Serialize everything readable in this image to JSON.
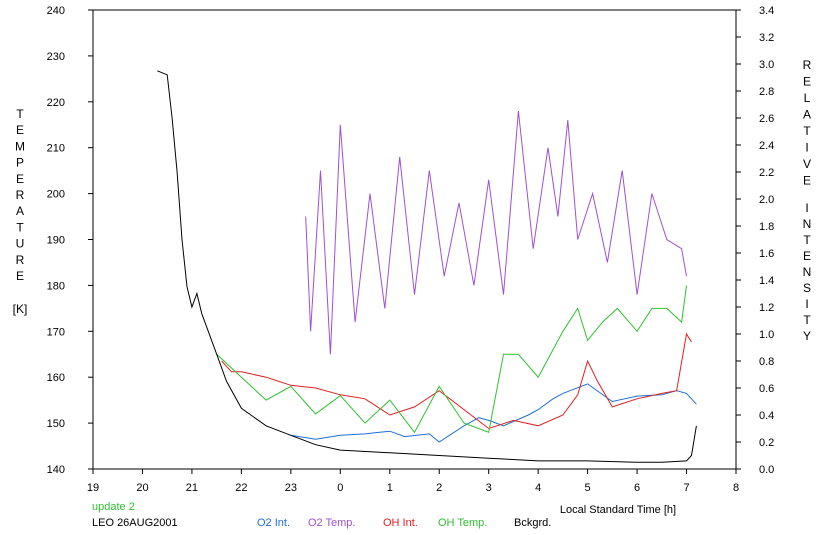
{
  "chart_data": {
    "type": "line",
    "title": "",
    "ylabel_left_letters": [
      "T",
      "E",
      "M",
      "P",
      "E",
      "R",
      "A",
      "T",
      "U",
      "R",
      "E"
    ],
    "ylabel_left_unit": "[K]",
    "ylabel_right_word1": [
      "R",
      "E",
      "L",
      "A",
      "T",
      "I",
      "V",
      "E"
    ],
    "ylabel_right_word2": [
      "I",
      "N",
      "T",
      "E",
      "N",
      "S",
      "I",
      "T",
      "Y"
    ],
    "xlabel": "Local Standard Time [h]",
    "x_range": [
      19,
      32
    ],
    "x_ticks": [
      19,
      20,
      21,
      22,
      23,
      24,
      25,
      26,
      27,
      28,
      29,
      30,
      31,
      32
    ],
    "x_tick_labels": [
      "19",
      "20",
      "21",
      "22",
      "23",
      "0",
      "1",
      "2",
      "3",
      "4",
      "5",
      "6",
      "7",
      "8"
    ],
    "y_left_range": [
      140,
      240
    ],
    "y_left_ticks": [
      140,
      150,
      160,
      170,
      180,
      190,
      200,
      210,
      220,
      230,
      240
    ],
    "y_left_tick_labels": [
      "140",
      "150",
      "160",
      "170",
      "180",
      "190",
      "200",
      "210",
      "220",
      "230",
      "240"
    ],
    "y_right_range": [
      0,
      3.4
    ],
    "y_right_ticks": [
      0,
      0.2,
      0.4,
      0.6,
      0.8,
      1.0,
      1.2,
      1.4,
      1.6,
      1.8,
      2.0,
      2.2,
      2.4,
      2.6,
      2.8,
      3.0,
      3.2,
      3.4
    ],
    "y_right_tick_labels": [
      "0.0",
      "0.2",
      "0.4",
      "0.6",
      "0.8",
      "1.0",
      "1.2",
      "1.4",
      "1.6",
      "1.8",
      "2.0",
      "2.2",
      "2.4",
      "2.6",
      "2.8",
      "3.0",
      "3.2",
      "3.4"
    ],
    "grid": false,
    "legend_placement": "bottom",
    "series": [
      {
        "name": "O2 Int.",
        "color": "#1f6fd6",
        "axis": "right",
        "x": [
          23.0,
          23.5,
          24.0,
          24.5,
          25.0,
          25.3,
          25.8,
          26.0,
          26.5,
          26.8,
          27.0,
          27.3,
          27.8,
          28.0,
          28.3,
          28.5,
          29.0,
          29.5,
          30.0,
          30.5,
          30.8,
          31.0,
          31.2
        ],
        "y": [
          0.25,
          0.22,
          0.25,
          0.26,
          0.28,
          0.24,
          0.26,
          0.2,
          0.32,
          0.38,
          0.36,
          0.32,
          0.4,
          0.44,
          0.52,
          0.56,
          0.63,
          0.5,
          0.54,
          0.55,
          0.58,
          0.56,
          0.48
        ]
      },
      {
        "name": "O2 Temp.",
        "color": "#a050d0",
        "axis": "left",
        "x": [
          23.3,
          23.4,
          23.6,
          23.8,
          24.0,
          24.3,
          24.6,
          24.9,
          25.2,
          25.5,
          25.8,
          26.1,
          26.4,
          26.7,
          27.0,
          27.3,
          27.6,
          27.9,
          28.2,
          28.4,
          28.6,
          28.8,
          29.1,
          29.4,
          29.7,
          30.0,
          30.3,
          30.6,
          30.9,
          31.0
        ],
        "y": [
          195,
          170,
          205,
          165,
          215,
          172,
          200,
          175,
          208,
          178,
          205,
          182,
          198,
          180,
          203,
          178,
          218,
          188,
          210,
          195,
          216,
          190,
          200,
          185,
          205,
          178,
          200,
          190,
          188,
          182
        ]
      },
      {
        "name": "OH Int.",
        "color": "#e02020",
        "axis": "right",
        "x": [
          21.6,
          21.8,
          22.0,
          22.5,
          23.0,
          23.5,
          24.0,
          24.5,
          25.0,
          25.5,
          26.0,
          26.5,
          27.0,
          27.5,
          28.0,
          28.5,
          28.8,
          29.0,
          29.2,
          29.5,
          30.0,
          30.5,
          30.8,
          31.0,
          31.1
        ],
        "y": [
          0.8,
          0.72,
          0.72,
          0.68,
          0.62,
          0.6,
          0.55,
          0.52,
          0.4,
          0.46,
          0.58,
          0.44,
          0.3,
          0.36,
          0.32,
          0.4,
          0.55,
          0.8,
          0.65,
          0.46,
          0.52,
          0.56,
          0.58,
          1.0,
          0.94
        ]
      },
      {
        "name": "OH Temp.",
        "color": "#30c030",
        "axis": "left",
        "x": [
          21.5,
          22.0,
          22.5,
          23.0,
          23.5,
          24.0,
          24.5,
          25.0,
          25.5,
          26.0,
          26.5,
          27.0,
          27.3,
          27.6,
          28.0,
          28.5,
          28.8,
          29.0,
          29.3,
          29.6,
          30.0,
          30.3,
          30.6,
          30.9,
          31.0
        ],
        "y": [
          165,
          160,
          155,
          158,
          152,
          156,
          150,
          155,
          148,
          158,
          150,
          148,
          165,
          165,
          160,
          170,
          175,
          168,
          172,
          175,
          170,
          175,
          175,
          172,
          180
        ]
      },
      {
        "name": "Bckgrd.",
        "color": "#000000",
        "axis": "right",
        "x": [
          20.3,
          20.5,
          20.6,
          20.7,
          20.8,
          20.9,
          21.0,
          21.1,
          21.2,
          21.3,
          21.5,
          21.7,
          22.0,
          22.5,
          23.0,
          23.5,
          24.0,
          25.0,
          26.0,
          27.0,
          28.0,
          29.0,
          30.0,
          30.5,
          31.0,
          31.1,
          31.2
        ],
        "y": [
          2.95,
          2.92,
          2.6,
          2.2,
          1.7,
          1.35,
          1.2,
          1.3,
          1.15,
          1.05,
          0.85,
          0.65,
          0.45,
          0.32,
          0.25,
          0.18,
          0.14,
          0.12,
          0.1,
          0.08,
          0.06,
          0.06,
          0.05,
          0.05,
          0.06,
          0.1,
          0.32
        ]
      }
    ]
  },
  "footer": {
    "update_label": "update 2",
    "update_color": "#30c030",
    "station_label": "LEO 26AUG2001"
  }
}
